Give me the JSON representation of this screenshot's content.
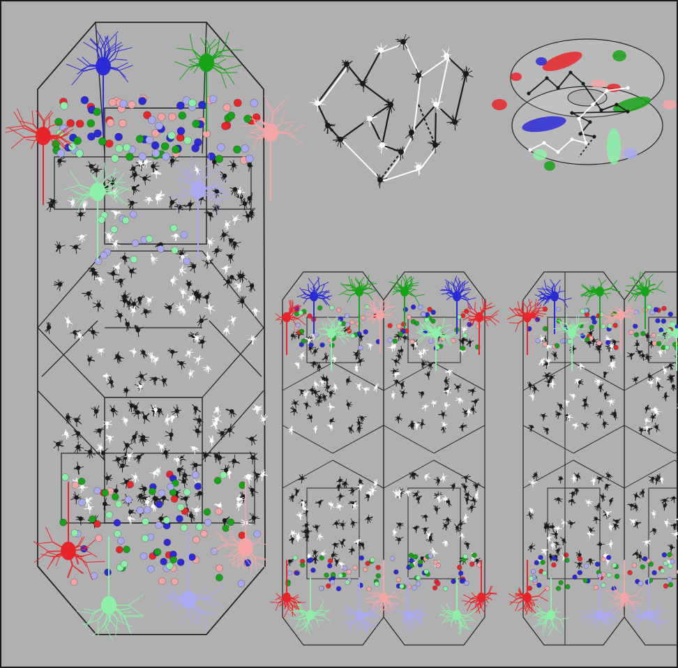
{
  "figure": {
    "background": "#b0b0b0",
    "wire_color": "#222222",
    "neuron_palette": {
      "red": "#e8262a",
      "blue": "#2a2ad6",
      "green": "#17a317",
      "pink": "#f4a6a6",
      "light_green": "#8ef0a8",
      "lavender": "#a9a9f0",
      "white": "#ffffff",
      "black": "#1a1a1a"
    },
    "panels": [
      {
        "key": "column-large",
        "description_icon": "cortical-column-icon"
      },
      {
        "key": "network-graph",
        "description_icon": "graph-icon"
      },
      {
        "key": "ring-model",
        "description_icon": "ring-icon"
      },
      {
        "key": "column-pair-left",
        "description_icon": "cortical-column-icon"
      },
      {
        "key": "column-pair-right",
        "description_icon": "cortical-column-icon"
      }
    ]
  }
}
